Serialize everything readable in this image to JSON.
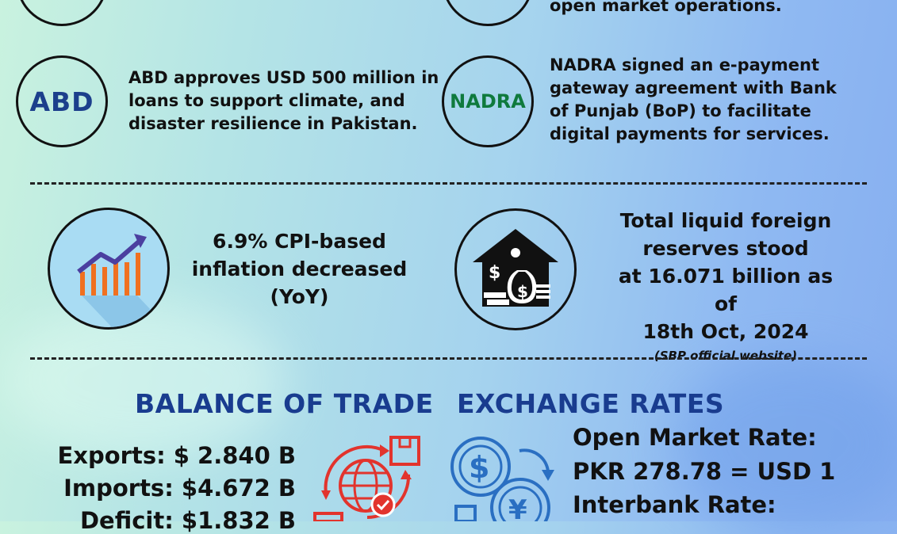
{
  "news": {
    "item1_partial": "open market operations.",
    "abd": {
      "logo": "ABD",
      "text_lines": [
        "ABD approves USD 500 million in",
        "loans to support climate, and",
        "disaster resilience in Pakistan."
      ]
    },
    "nadra": {
      "logo": "NADRA",
      "text_lines": [
        "NADRA signed an e-payment",
        "gateway agreement with Bank",
        "of Punjab (BoP) to facilitate",
        "digital payments for services."
      ]
    }
  },
  "inflation": {
    "icon": "growth-chart-icon",
    "lines": [
      "6.9% CPI-based",
      "inflation decreased",
      "(YoY)"
    ]
  },
  "reserves": {
    "icon": "house-money-icon",
    "lines": [
      "Total liquid foreign",
      "reserves stood",
      "at 16.071 billion as of",
      "18th Oct, 2024"
    ],
    "source": "(SBP official website)"
  },
  "balance_of_trade": {
    "title": "BALANCE OF TRADE",
    "exports": "Exports: $ 2.840 B",
    "imports": "Imports: $4.672 B",
    "deficit": "Deficit: $1.832 B",
    "icon": "global-trade-icon"
  },
  "exchange_rates": {
    "title": "EXCHANGE RATES",
    "open_market_label": "Open Market Rate:",
    "open_market_value": "PKR 278.78 = USD 1",
    "interbank_label": "Interbank Rate:",
    "icon": "currency-exchange-icon"
  },
  "colors": {
    "title_blue": "#193c8f",
    "abd_blue": "#1c3f8c",
    "nadra_green": "#0f7a3d",
    "trade_red": "#e2342d",
    "exchange_blue": "#2a6fc2"
  }
}
